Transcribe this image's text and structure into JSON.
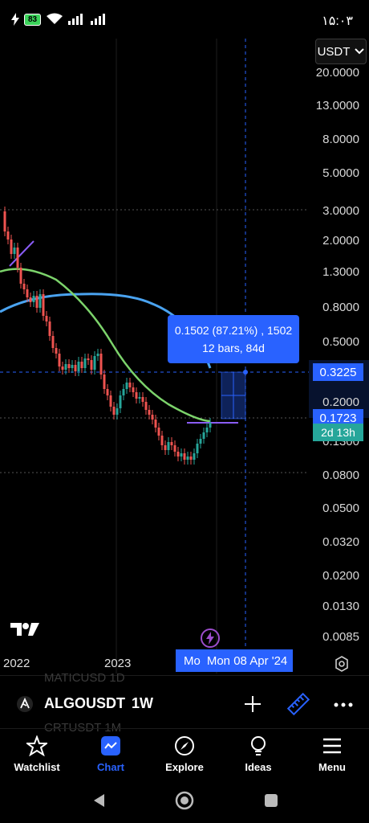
{
  "status_bar": {
    "battery": "83",
    "time": "۱۵:۰۳"
  },
  "chart": {
    "currency_selector": "USDT",
    "y_axis_labels": [
      "20.0000",
      "13.0000",
      "8.0000",
      "5.0000",
      "3.0000",
      "2.0000",
      "1.3000",
      "0.8000",
      "0.5000",
      "0.2000",
      "0.1300",
      "0.0800",
      "0.0500",
      "0.0320",
      "0.0200",
      "0.0130",
      "0.0085"
    ],
    "log_scale": true,
    "crosshair_price": "0.3225",
    "last_price": "0.1723",
    "countdown": "2d 13h",
    "measure_line1": "0.1502 (87.21%) , 1502",
    "measure_line2": "12 bars, 84d",
    "x_axis_labels": [
      "2022",
      "2023"
    ],
    "date_tag_left": "Mo",
    "date_tag": "Mon 08 Apr '24",
    "colors": {
      "up": "#26a69a",
      "down": "#ef5350",
      "ma_fast": "#7cd36b",
      "ma_slow": "#4aa3f0",
      "accent": "#2962ff",
      "crosshair": "#2962ff"
    }
  },
  "symbol_bar": {
    "symbol": "ALGOUSDT",
    "interval": "1W",
    "ghost_above": "MATICUSD   1D",
    "ghost_below": "CRTUSDT   1M"
  },
  "bottom_nav": {
    "items": [
      {
        "label": "Watchlist",
        "icon": "star-icon"
      },
      {
        "label": "Chart",
        "icon": "chart-icon"
      },
      {
        "label": "Explore",
        "icon": "compass-icon"
      },
      {
        "label": "Ideas",
        "icon": "lightbulb-icon"
      },
      {
        "label": "Menu",
        "icon": "hamburger-icon"
      }
    ],
    "active": "Chart"
  }
}
